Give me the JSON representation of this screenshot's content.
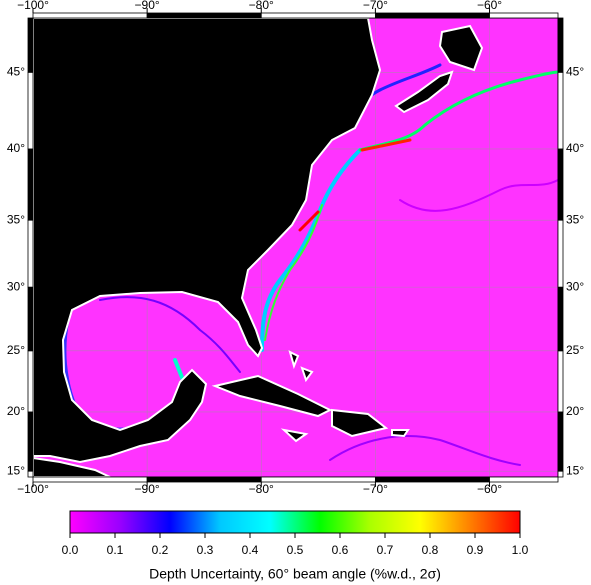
{
  "chart_data": {
    "type": "map",
    "projection": "mercator",
    "xlim": [
      -100,
      -54
    ],
    "ylim": [
      14.5,
      48.3
    ],
    "xticks": [
      {
        "value": -100,
        "label": "−100°"
      },
      {
        "value": -90,
        "label": "−90°"
      },
      {
        "value": -80,
        "label": "−80°"
      },
      {
        "value": -70,
        "label": "−70°"
      },
      {
        "value": -60,
        "label": "−60°"
      }
    ],
    "yticks": [
      {
        "value": 15,
        "label": "15°"
      },
      {
        "value": 20,
        "label": "20°"
      },
      {
        "value": 25,
        "label": "25°"
      },
      {
        "value": 30,
        "label": "30°"
      },
      {
        "value": 35,
        "label": "35°"
      },
      {
        "value": 40,
        "label": "40°"
      },
      {
        "value": 45,
        "label": "45°"
      }
    ],
    "grid": true,
    "colorbar": {
      "label": "Depth Uncertainty, 60° beam angle (%w.d., 2σ)",
      "lim": [
        0,
        1
      ],
      "ticks": [
        {
          "value": 0,
          "label": "0.0"
        },
        0.1,
        0.2,
        0.3,
        0.4,
        0.5,
        0.6,
        0.7,
        0.8,
        0.9,
        {
          "value": 1,
          "label": "1.0"
        }
      ],
      "colors": [
        "#ff00ff",
        "#9a00ff",
        "#0000ff",
        "#00c8ff",
        "#00ffff",
        "#00ff00",
        "#aaff00",
        "#ffff00",
        "#ff8000",
        "#ff0000"
      ]
    }
  }
}
